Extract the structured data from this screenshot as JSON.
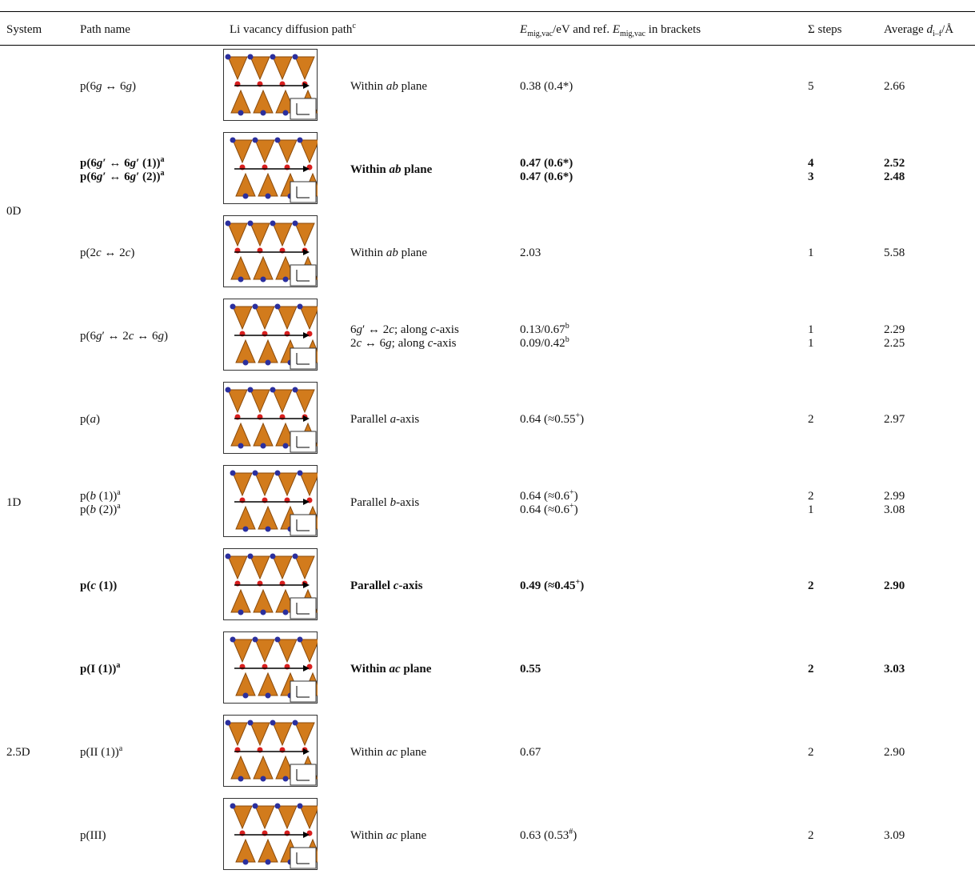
{
  "table": {
    "headers": [
      [
        "System"
      ],
      [
        "Path name"
      ],
      [
        "Li vacancy diffusion path",
        {
          "sup": "c"
        }
      ],
      [
        {
          "i": "E"
        },
        {
          "sub": "mig,vac"
        },
        "/eV and ref. ",
        {
          "i": "E"
        },
        {
          "sub": "mig,vac"
        },
        " in brackets"
      ],
      [
        "Σ steps"
      ],
      [
        "Average ",
        {
          "i": "d"
        },
        {
          "sub": "i–f"
        },
        "/Å"
      ]
    ],
    "groups": [
      {
        "system": "0D",
        "rows": [
          {
            "path": [
              [
                "p(6",
                {
                  "i": "g"
                },
                " ↔ 6",
                {
                  "i": "g"
                },
                ")"
              ]
            ],
            "description": [
              [
                "Within ",
                {
                  "i": "ab"
                },
                " plane"
              ]
            ],
            "energy": [
              [
                "0.38 (0.4*)"
              ]
            ],
            "steps": [
              [
                "5"
              ]
            ],
            "distance": [
              [
                "2.66"
              ]
            ]
          },
          {
            "bold": true,
            "path": [
              [
                "p(6",
                {
                  "i": "g"
                },
                "′ ↔ 6",
                {
                  "i": "g"
                },
                "′ (1))",
                {
                  "sup": "a"
                }
              ],
              [
                "p(6",
                {
                  "i": "g"
                },
                "′ ↔ 6",
                {
                  "i": "g"
                },
                "′ (2))",
                {
                  "sup": "a"
                }
              ]
            ],
            "description": [
              [
                "Within ",
                {
                  "i": "ab"
                },
                " plane"
              ]
            ],
            "energy": [
              [
                "0.47 (0.6*)"
              ],
              [
                "0.47 (0.6*)"
              ]
            ],
            "steps": [
              [
                "4"
              ],
              [
                "3"
              ]
            ],
            "distance": [
              [
                "2.52"
              ],
              [
                "2.48"
              ]
            ]
          },
          {
            "path": [
              [
                "p(2",
                {
                  "i": "c"
                },
                " ↔ 2",
                {
                  "i": "c"
                },
                ")"
              ]
            ],
            "description": [
              [
                "Within ",
                {
                  "i": "ab"
                },
                " plane"
              ]
            ],
            "energy": [
              [
                "2.03"
              ]
            ],
            "steps": [
              [
                "1"
              ]
            ],
            "distance": [
              [
                "5.58"
              ]
            ]
          },
          {
            "path": [
              [
                "p(6",
                {
                  "i": "g"
                },
                "′ ↔ 2",
                {
                  "i": "c"
                },
                " ↔ 6",
                {
                  "i": "g"
                },
                ")"
              ]
            ],
            "description": [
              [
                "6",
                {
                  "i": "g"
                },
                "′ ↔ 2",
                {
                  "i": "c"
                },
                "; along ",
                {
                  "i": "c"
                },
                "-axis"
              ],
              [
                "2",
                {
                  "i": "c"
                },
                " ↔ 6",
                {
                  "i": "g"
                },
                "; along ",
                {
                  "i": "c"
                },
                "-axis"
              ]
            ],
            "energy": [
              [
                "0.13/0.67",
                {
                  "sup": "b"
                }
              ],
              [
                "0.09/0.42",
                {
                  "sup": "b"
                }
              ]
            ],
            "steps": [
              [
                "1"
              ],
              [
                "1"
              ]
            ],
            "distance": [
              [
                "2.29"
              ],
              [
                "2.25"
              ]
            ]
          }
        ]
      },
      {
        "system": "1D",
        "rows": [
          {
            "path": [
              [
                "p(",
                {
                  "i": "a"
                },
                ")"
              ]
            ],
            "description": [
              [
                "Parallel ",
                {
                  "i": "a"
                },
                "-axis"
              ]
            ],
            "energy": [
              [
                "0.64 (≈0.55",
                {
                  "sup": "+"
                },
                ")"
              ]
            ],
            "steps": [
              [
                "2"
              ]
            ],
            "distance": [
              [
                "2.97"
              ]
            ]
          },
          {
            "path": [
              [
                "p(",
                {
                  "i": "b"
                },
                " (1))",
                {
                  "sup": "a"
                }
              ],
              [
                "p(",
                {
                  "i": "b"
                },
                " (2))",
                {
                  "sup": "a"
                }
              ]
            ],
            "description": [
              [
                "Parallel ",
                {
                  "i": "b"
                },
                "-axis"
              ]
            ],
            "energy": [
              [
                "0.64 (≈0.6",
                {
                  "sup": "+"
                },
                ")"
              ],
              [
                "0.64 (≈0.6",
                {
                  "sup": "+"
                },
                ")"
              ]
            ],
            "steps": [
              [
                "2"
              ],
              [
                "1"
              ]
            ],
            "distance": [
              [
                "2.99"
              ],
              [
                "3.08"
              ]
            ]
          },
          {
            "bold": true,
            "path": [
              [
                "p(",
                {
                  "i": "c"
                },
                " (1))"
              ]
            ],
            "description": [
              [
                "Parallel ",
                {
                  "i": "c"
                },
                "-axis"
              ]
            ],
            "energy": [
              [
                "0.49 (≈0.45",
                {
                  "sup": "+"
                },
                ")"
              ]
            ],
            "steps": [
              [
                "2"
              ]
            ],
            "distance": [
              [
                "2.90"
              ]
            ]
          }
        ]
      },
      {
        "system": "2.5D",
        "rows": [
          {
            "bold": true,
            "path": [
              [
                "p(I (1))",
                {
                  "sup": "a"
                }
              ]
            ],
            "description": [
              [
                "Within ",
                {
                  "i": "ac"
                },
                " plane"
              ]
            ],
            "energy": [
              [
                "0.55"
              ]
            ],
            "steps": [
              [
                "2"
              ]
            ],
            "distance": [
              [
                "3.03"
              ]
            ]
          },
          {
            "path": [
              [
                "p(II (1))",
                {
                  "sup": "a"
                }
              ]
            ],
            "description": [
              [
                "Within ",
                {
                  "i": "ac"
                },
                " plane"
              ]
            ],
            "energy": [
              [
                "0.67"
              ]
            ],
            "steps": [
              [
                "2"
              ]
            ],
            "distance": [
              [
                "2.90"
              ]
            ]
          },
          {
            "path": [
              [
                "p(III)"
              ]
            ],
            "description": [
              [
                "Within ",
                {
                  "i": "ac"
                },
                " plane"
              ]
            ],
            "energy": [
              [
                "0.63 (0.53",
                {
                  "sup": "#"
                },
                ")"
              ]
            ],
            "steps": [
              [
                "2"
              ]
            ],
            "distance": [
              [
                "3.09"
              ]
            ]
          }
        ]
      }
    ]
  }
}
